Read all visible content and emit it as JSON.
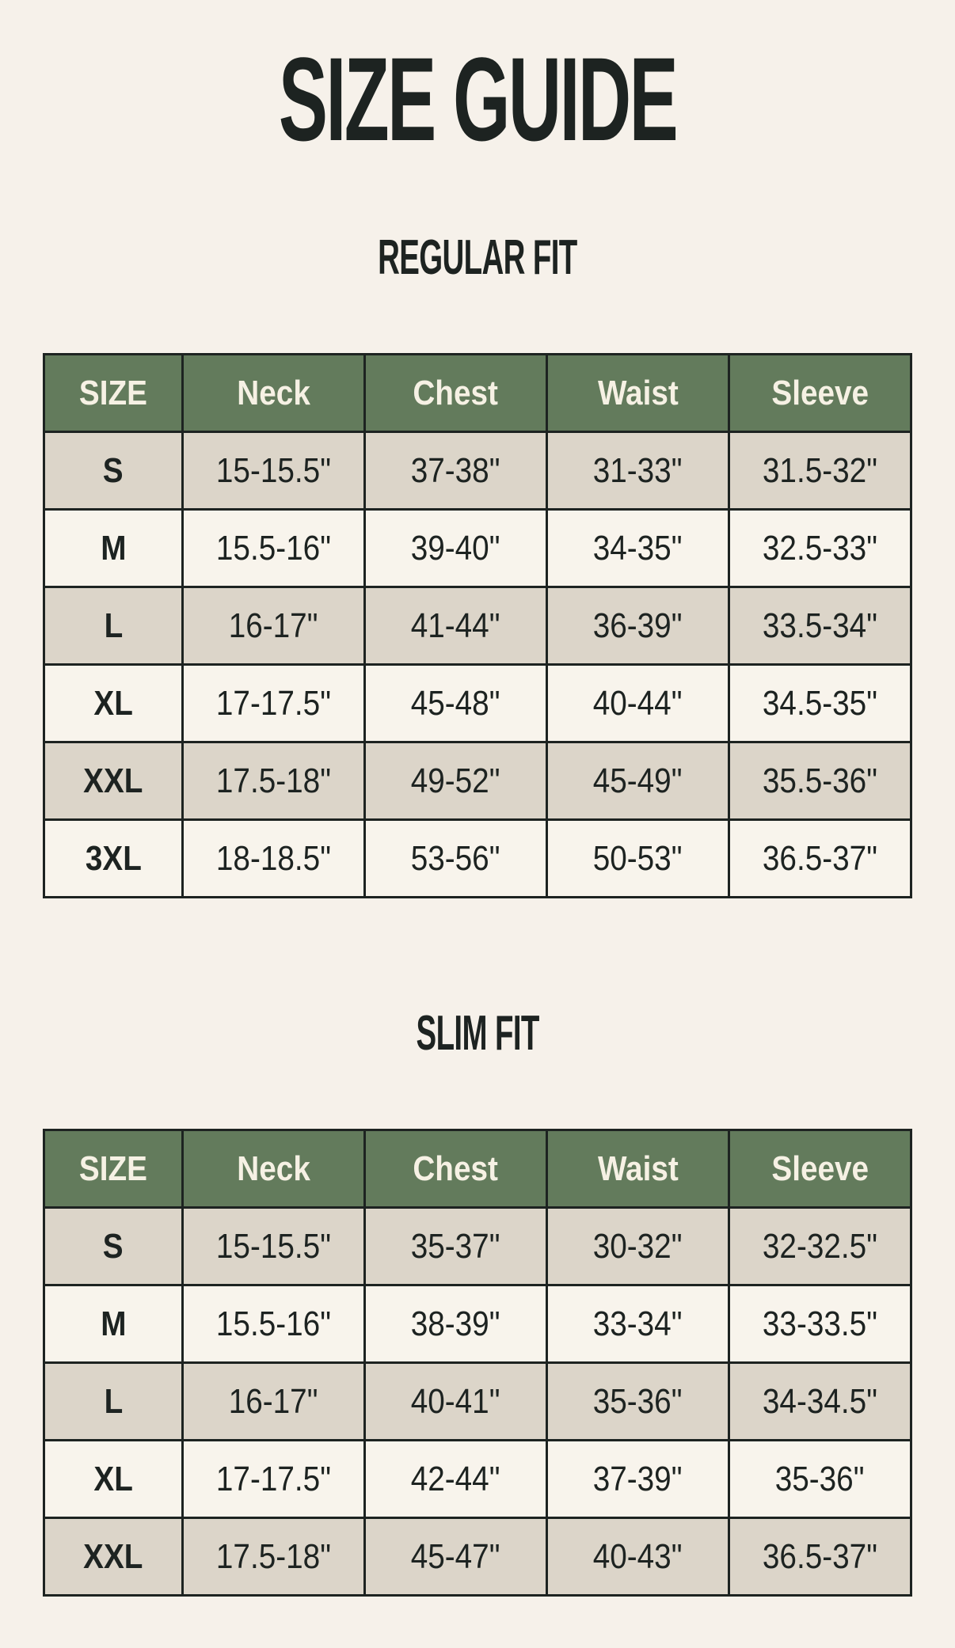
{
  "title": "SIZE GUIDE",
  "headers": [
    "SIZE",
    "Neck",
    "Chest",
    "Waist",
    "Sleeve"
  ],
  "colors": {
    "header_bg": "#637b5c",
    "header_text": "#f6f1e4",
    "row_shaded": "#dcd5c9",
    "row_light": "#f8f4ec",
    "page_bg": "#f6f1ea",
    "border": "#1d2321"
  },
  "regular": {
    "heading": "REGULAR FIT",
    "rows": [
      [
        "S",
        "15-15.5\"",
        "37-38\"",
        "31-33\"",
        "31.5-32\""
      ],
      [
        "M",
        "15.5-16\"",
        "39-40\"",
        "34-35\"",
        "32.5-33\""
      ],
      [
        "L",
        "16-17\"",
        "41-44\"",
        "36-39\"",
        "33.5-34\""
      ],
      [
        "XL",
        "17-17.5\"",
        "45-48\"",
        "40-44\"",
        "34.5-35\""
      ],
      [
        "XXL",
        "17.5-18\"",
        "49-52\"",
        "45-49\"",
        "35.5-36\""
      ],
      [
        "3XL",
        "18-18.5\"",
        "53-56\"",
        "50-53\"",
        "36.5-37\""
      ]
    ]
  },
  "slim": {
    "heading": "SLIM FIT",
    "rows": [
      [
        "S",
        "15-15.5\"",
        "35-37\"",
        "30-32\"",
        "32-32.5\""
      ],
      [
        "M",
        "15.5-16\"",
        "38-39\"",
        "33-34\"",
        "33-33.5\""
      ],
      [
        "L",
        "16-17\"",
        "40-41\"",
        "35-36\"",
        "34-34.5\""
      ],
      [
        "XL",
        "17-17.5\"",
        "42-44\"",
        "37-39\"",
        "35-36\""
      ],
      [
        "XXL",
        "17.5-18\"",
        "45-47\"",
        "40-43\"",
        "36.5-37\""
      ]
    ]
  }
}
